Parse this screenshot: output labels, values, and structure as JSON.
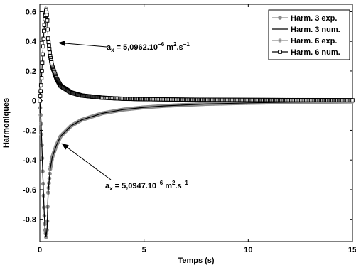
{
  "chart_data": {
    "type": "line",
    "xlabel": "Temps (s)",
    "ylabel": "Harmoniques",
    "xlim": [
      0,
      15
    ],
    "ylim": [
      -0.95,
      0.65
    ],
    "x_ticks": [
      {
        "value": 0,
        "label": "0"
      },
      {
        "value": 5,
        "label": "5"
      },
      {
        "value": 10,
        "label": "10"
      },
      {
        "value": 15,
        "label": "15"
      }
    ],
    "y_ticks": [
      {
        "value": 0.6,
        "label": "0.6"
      },
      {
        "value": 0.4,
        "label": "0.4"
      },
      {
        "value": 0.2,
        "label": "0.2"
      },
      {
        "value": 0,
        "label": "0"
      },
      {
        "value": -0.2,
        "label": "-0.2"
      },
      {
        "value": -0.4,
        "label": "-0.4"
      },
      {
        "value": -0.6,
        "label": "-0.6"
      },
      {
        "value": -0.8,
        "label": "-0.8"
      }
    ],
    "grid": false,
    "legend_position": "top-right",
    "series": [
      {
        "name": "Harm. 3 exp.",
        "style": "line-circle",
        "color": "#8c8c8c",
        "points": [
          [
            0,
            0
          ],
          [
            0.05,
            -0.12
          ],
          [
            0.1,
            -0.3
          ],
          [
            0.15,
            -0.52
          ],
          [
            0.2,
            -0.72
          ],
          [
            0.25,
            -0.86
          ],
          [
            0.3,
            -0.92
          ],
          [
            0.35,
            -0.86
          ],
          [
            0.4,
            -0.62
          ],
          [
            0.5,
            -0.46
          ],
          [
            0.6,
            -0.38
          ],
          [
            0.8,
            -0.3
          ],
          [
            1.0,
            -0.24
          ],
          [
            1.5,
            -0.17
          ],
          [
            2,
            -0.13
          ],
          [
            3,
            -0.085
          ],
          [
            4,
            -0.06
          ],
          [
            5,
            -0.045
          ],
          [
            6,
            -0.035
          ],
          [
            8,
            -0.022
          ],
          [
            10,
            -0.015
          ],
          [
            12,
            -0.01
          ],
          [
            15,
            -0.006
          ]
        ]
      },
      {
        "name": "Harm. 3 num.",
        "style": "line",
        "color": "#000000",
        "points": [
          [
            0,
            0
          ],
          [
            0.05,
            -0.12
          ],
          [
            0.1,
            -0.3
          ],
          [
            0.15,
            -0.52
          ],
          [
            0.2,
            -0.72
          ],
          [
            0.25,
            -0.86
          ],
          [
            0.3,
            -0.92
          ],
          [
            0.35,
            -0.86
          ],
          [
            0.4,
            -0.62
          ],
          [
            0.5,
            -0.46
          ],
          [
            0.6,
            -0.38
          ],
          [
            0.8,
            -0.3
          ],
          [
            1.0,
            -0.24
          ],
          [
            1.5,
            -0.17
          ],
          [
            2,
            -0.13
          ],
          [
            3,
            -0.085
          ],
          [
            4,
            -0.06
          ],
          [
            5,
            -0.045
          ],
          [
            6,
            -0.035
          ],
          [
            8,
            -0.022
          ],
          [
            10,
            -0.015
          ],
          [
            12,
            -0.01
          ],
          [
            15,
            -0.006
          ]
        ]
      },
      {
        "name": "Harm. 6 exp.",
        "style": "line-star",
        "color": "#8c8c8c",
        "points": [
          [
            0,
            0
          ],
          [
            0.05,
            0.08
          ],
          [
            0.1,
            0.2
          ],
          [
            0.15,
            0.34
          ],
          [
            0.2,
            0.47
          ],
          [
            0.25,
            0.57
          ],
          [
            0.3,
            0.62
          ],
          [
            0.35,
            0.58
          ],
          [
            0.4,
            0.42
          ],
          [
            0.5,
            0.3
          ],
          [
            0.6,
            0.23
          ],
          [
            0.8,
            0.15
          ],
          [
            1.0,
            0.1
          ],
          [
            1.5,
            0.055
          ],
          [
            2,
            0.035
          ],
          [
            3,
            0.02
          ],
          [
            4,
            0.013
          ],
          [
            5,
            0.01
          ],
          [
            7,
            0.007
          ],
          [
            10,
            0.005
          ],
          [
            15,
            0.003
          ]
        ]
      },
      {
        "name": "Harm. 6 num.",
        "style": "line-square",
        "color": "#000000",
        "points": [
          [
            0,
            0
          ],
          [
            0.05,
            0.08
          ],
          [
            0.1,
            0.2
          ],
          [
            0.15,
            0.34
          ],
          [
            0.2,
            0.47
          ],
          [
            0.25,
            0.57
          ],
          [
            0.3,
            0.61
          ],
          [
            0.35,
            0.57
          ],
          [
            0.4,
            0.42
          ],
          [
            0.5,
            0.3
          ],
          [
            0.6,
            0.23
          ],
          [
            0.8,
            0.15
          ],
          [
            1.0,
            0.1
          ],
          [
            1.5,
            0.055
          ],
          [
            2,
            0.035
          ],
          [
            3,
            0.02
          ],
          [
            4,
            0.013
          ],
          [
            5,
            0.01
          ],
          [
            7,
            0.007
          ],
          [
            10,
            0.005
          ],
          [
            15,
            0.003
          ]
        ]
      }
    ],
    "annotations": [
      {
        "base": "a",
        "sub": "x",
        "mid": " = 5,0962.10",
        "sup1": "−6",
        "tail": " m",
        "sup2": "2",
        "end": ".s",
        "sup3": "−1",
        "arrow_target": [
          0.85,
          0.39
        ]
      },
      {
        "base": "a",
        "sub": "x",
        "mid": " = 5,0947.10",
        "sup1": "−6",
        "tail": " m",
        "sup2": "2",
        "end": ".s",
        "sup3": "−1",
        "arrow_target": [
          1.0,
          -0.29
        ]
      }
    ]
  }
}
